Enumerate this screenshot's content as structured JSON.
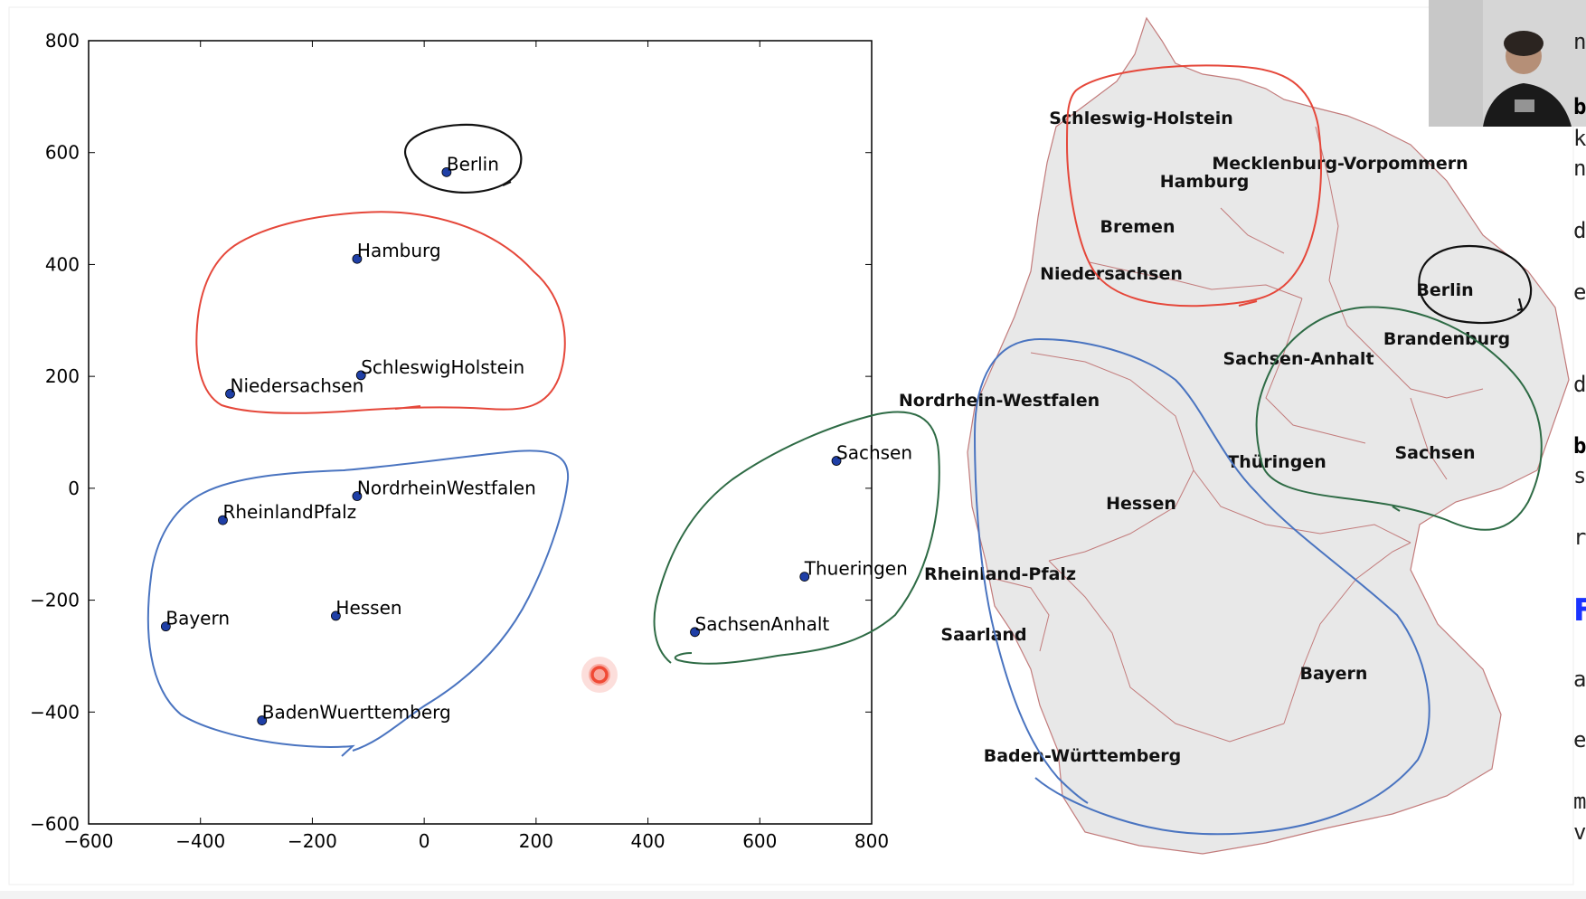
{
  "colors": {
    "point": "#1f3fa6",
    "cluster_north": "#e5473a",
    "cluster_west": "#4a74c0",
    "cluster_east": "#2e6b45",
    "cluster_berlin": "#111111",
    "map_fill": "#e8e8e8",
    "map_border": "#c27b7b",
    "cursor": "#f04a35"
  },
  "chart_data": {
    "type": "scatter",
    "title": "",
    "xlabel": "",
    "ylabel": "",
    "xlim": [
      -600,
      800
    ],
    "ylim": [
      -600,
      800
    ],
    "xticks": [
      -600,
      -400,
      -200,
      0,
      200,
      400,
      600,
      800
    ],
    "yticks": [
      -600,
      -400,
      -200,
      0,
      200,
      400,
      600,
      800
    ],
    "tick_labels_x": [
      "−600",
      "−400",
      "−200",
      "0",
      "200",
      "400",
      "600",
      "800"
    ],
    "tick_labels_y": [
      "−600",
      "−400",
      "−200",
      "0",
      "200",
      "400",
      "600",
      "800"
    ],
    "grid": false,
    "points": [
      {
        "label": "Berlin",
        "x": 40,
        "y": 565
      },
      {
        "label": "Hamburg",
        "x": -120,
        "y": 410
      },
      {
        "label": "SchleswigHolstein",
        "x": -113,
        "y": 202
      },
      {
        "label": "Niedersachsen",
        "x": -347,
        "y": 169
      },
      {
        "label": "NordrheinWestfalen",
        "x": -120,
        "y": -14
      },
      {
        "label": "RheinlandPfalz",
        "x": -360,
        "y": -57
      },
      {
        "label": "Bayern",
        "x": -462,
        "y": -247
      },
      {
        "label": "Hessen",
        "x": -158,
        "y": -228
      },
      {
        "label": "BadenWuerttemberg",
        "x": -290,
        "y": -415
      },
      {
        "label": "Sachsen",
        "x": 737,
        "y": 49
      },
      {
        "label": "Thueringen",
        "x": 680,
        "y": -158
      },
      {
        "label": "SachsenAnhalt",
        "x": 484,
        "y": -257
      }
    ],
    "annotations": [
      {
        "kind": "hand-drawn-loop",
        "color": "black",
        "encloses": [
          "Berlin"
        ]
      },
      {
        "kind": "hand-drawn-loop",
        "color": "red",
        "encloses": [
          "Hamburg",
          "SchleswigHolstein",
          "Niedersachsen"
        ]
      },
      {
        "kind": "hand-drawn-loop",
        "color": "blue",
        "encloses": [
          "NordrheinWestfalen",
          "RheinlandPfalz",
          "Bayern",
          "Hessen",
          "BadenWuerttemberg"
        ]
      },
      {
        "kind": "hand-drawn-loop",
        "color": "green",
        "encloses": [
          "Sachsen",
          "Thueringen",
          "SachsenAnhalt"
        ]
      }
    ]
  },
  "map": {
    "labels": [
      {
        "name": "Schleswig-Holstein"
      },
      {
        "name": "Hamburg"
      },
      {
        "name": "Mecklenburg-Vorpommern"
      },
      {
        "name": "Bremen"
      },
      {
        "name": "Niedersachsen"
      },
      {
        "name": "Berlin"
      },
      {
        "name": "Brandenburg"
      },
      {
        "name": "Sachsen-Anhalt"
      },
      {
        "name": "Nordrhein-Westfalen"
      },
      {
        "name": "Thüringen"
      },
      {
        "name": "Sachsen"
      },
      {
        "name": "Hessen"
      },
      {
        "name": "Rheinland-Pfalz"
      },
      {
        "name": "Saarland"
      },
      {
        "name": "Bayern"
      },
      {
        "name": "Baden-Württemberg"
      }
    ]
  },
  "side_text": [
    "n",
    "b",
    "k",
    "n",
    "d",
    "e",
    "d",
    "b",
    "s",
    "r",
    "F",
    "a",
    "e",
    "m",
    "v"
  ]
}
